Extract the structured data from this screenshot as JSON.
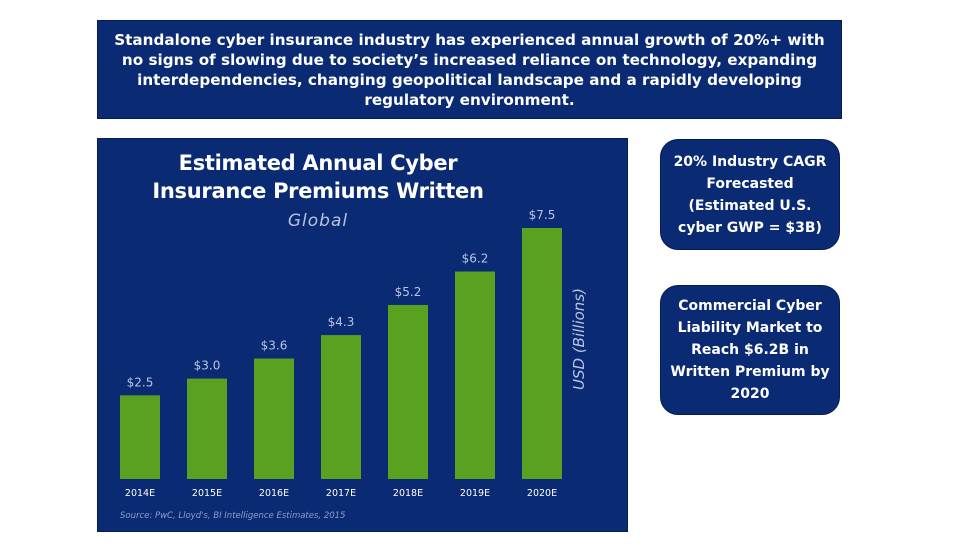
{
  "banner": {
    "text": "Standalone cyber insurance industry has experienced annual growth of 20%+ with no signs of slowing due to society’s increased reliance on technology, expanding interdependencies, changing geopolitical landscape and a rapidly developing regulatory environment."
  },
  "callouts": [
    {
      "text": "20% Industry CAGR Forecasted (Estimated U.S. cyber GWP = $3B)"
    },
    {
      "text": "Commercial Cyber Liability Market to Reach $6.2B in Written Premium by 2020"
    }
  ],
  "colors": {
    "panel": "#0a2a73",
    "bar": "#5aa021",
    "text": "#ffffff",
    "muted": "#b8c4e0"
  },
  "chart_data": {
    "type": "bar",
    "title": "Estimated Annual Cyber Insurance Premiums Written",
    "subtitle": "Global",
    "ylabel": "USD (Billions)",
    "xlabel": "",
    "categories": [
      "2014E",
      "2015E",
      "2016E",
      "2017E",
      "2018E",
      "2019E",
      "2020E"
    ],
    "values": [
      2.5,
      3.0,
      3.6,
      4.3,
      5.2,
      6.2,
      7.5
    ],
    "value_labels": [
      "$2.5",
      "$3.0",
      "$3.6",
      "$4.3",
      "$5.2",
      "$6.2",
      "$7.5"
    ],
    "ylim": [
      0,
      7.5
    ],
    "grid": false,
    "legend": "none",
    "source": "Source: PwC, Lloyd's, BI Intelligence Estimates, 2015"
  }
}
